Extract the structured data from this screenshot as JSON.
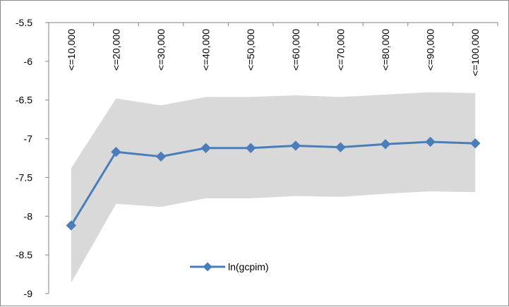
{
  "chart_data": {
    "type": "line",
    "categories": [
      "<=10,000",
      "<=20,000",
      "<=30,000",
      "<=40,000",
      "<=50,000",
      "<=60,000",
      "<=70,000",
      "<=80,000",
      "<=90,000",
      "<=100,000"
    ],
    "series": [
      {
        "name": "ln(gcpim)",
        "values": [
          -8.12,
          -7.17,
          -7.23,
          -7.12,
          -7.12,
          -7.09,
          -7.11,
          -7.07,
          -7.04,
          -7.06
        ],
        "color": "#4a7ebb",
        "marker": "diamond"
      }
    ],
    "band": {
      "upper": [
        -7.38,
        -6.48,
        -6.57,
        -6.46,
        -6.46,
        -6.44,
        -6.46,
        -6.43,
        -6.4,
        -6.41
      ],
      "lower": [
        -8.86,
        -7.84,
        -7.88,
        -7.77,
        -7.77,
        -7.74,
        -7.75,
        -7.71,
        -7.68,
        -7.69
      ],
      "color": "#d9d9d9"
    },
    "y_ticks": [
      "-5.5",
      "-6",
      "-6.5",
      "-7",
      "-7.5",
      "-8",
      "-8.5",
      "-9"
    ],
    "ylim": [
      -9,
      -5.5
    ],
    "y_axis": "reversed",
    "x_axis_position": "top",
    "x_tick_rotation": "vertical",
    "grid": false,
    "legend": {
      "position": "bottom-center"
    }
  }
}
